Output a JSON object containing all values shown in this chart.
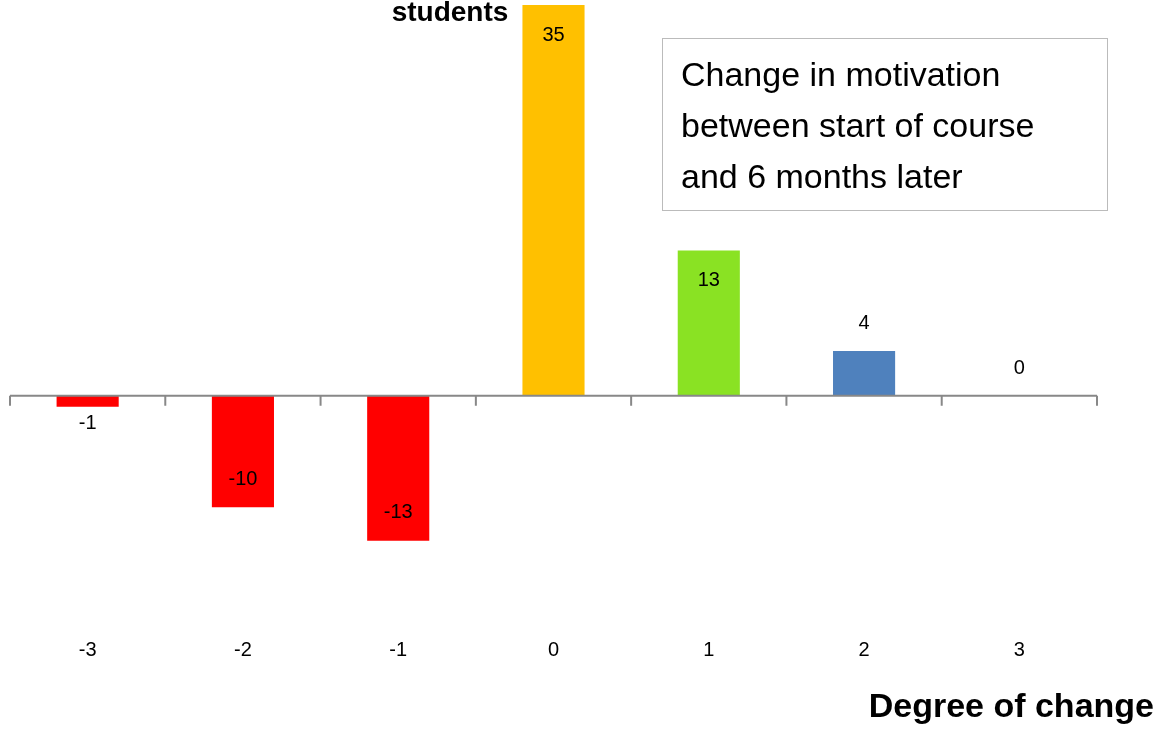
{
  "chart_data": {
    "type": "bar",
    "title": "students",
    "xlabel": "Degree of change",
    "annotations": [
      "Change in motivation between start of course and 6 months later"
    ],
    "categories": [
      "-3",
      "-2",
      "-1",
      "0",
      "1",
      "2",
      "3"
    ],
    "values": [
      -1,
      -10,
      -13,
      35,
      13,
      4,
      0
    ],
    "colors": [
      "#ff0000",
      "#ff0000",
      "#ff0000",
      "#ffc000",
      "#8ae223",
      "#4f81bd",
      "#4f81bd"
    ],
    "data_labels": true,
    "grid": false,
    "legend": false
  }
}
